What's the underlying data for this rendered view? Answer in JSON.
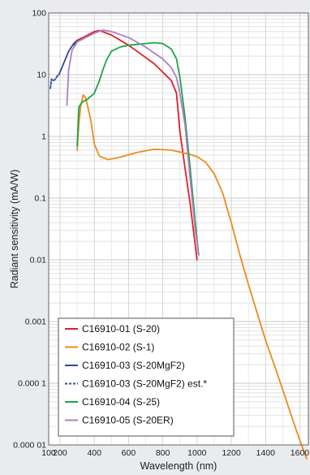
{
  "chart_data": {
    "type": "line",
    "title": "",
    "xlabel": "Wavelength (nm)",
    "ylabel": "Radiant sensitivity (mA/W)",
    "xlim": [
      100,
      1650
    ],
    "ylim": [
      1e-05,
      100
    ],
    "yscale": "log",
    "grid": true,
    "legend_position": "bottom-left",
    "x_ticks": [
      100,
      200,
      400,
      600,
      800,
      1000,
      1200,
      1400,
      1600
    ],
    "x_tick_labels": [
      "100",
      "200",
      "400",
      "600",
      "800",
      "1000",
      "1200",
      "1400",
      "1600"
    ],
    "y_ticks": [
      1e-05,
      0.0001,
      0.001,
      0.01,
      0.1,
      1,
      10,
      100
    ],
    "y_tick_labels": [
      "0.000 01",
      "0.000 1",
      "0.001",
      "0.01",
      "0.1",
      "1",
      "10",
      "100"
    ],
    "series": [
      {
        "name": "C16910-01 (S-20)",
        "color": "#e01f26",
        "dash": false,
        "points": [
          [
            280,
            30
          ],
          [
            300,
            36
          ],
          [
            350,
            42
          ],
          [
            400,
            50
          ],
          [
            430,
            52
          ],
          [
            500,
            44
          ],
          [
            600,
            30
          ],
          [
            700,
            19
          ],
          [
            750,
            15
          ],
          [
            800,
            11
          ],
          [
            850,
            8
          ],
          [
            880,
            5
          ],
          [
            900,
            1.2
          ],
          [
            930,
            0.3
          ],
          [
            960,
            0.08
          ],
          [
            1000,
            0.01
          ]
        ]
      },
      {
        "name": "C16910-02 (S-1)",
        "color": "#f08a1c",
        "dash": false,
        "points": [
          [
            300,
            0.6
          ],
          [
            310,
            1.6
          ],
          [
            320,
            3
          ],
          [
            335,
            4.7
          ],
          [
            350,
            4.2
          ],
          [
            380,
            1.8
          ],
          [
            400,
            0.75
          ],
          [
            430,
            0.48
          ],
          [
            480,
            0.42
          ],
          [
            550,
            0.46
          ],
          [
            650,
            0.55
          ],
          [
            750,
            0.62
          ],
          [
            850,
            0.6
          ],
          [
            950,
            0.52
          ],
          [
            1000,
            0.47
          ],
          [
            1050,
            0.38
          ],
          [
            1100,
            0.25
          ],
          [
            1150,
            0.12
          ],
          [
            1200,
            0.04
          ],
          [
            1250,
            0.012
          ],
          [
            1300,
            0.004
          ],
          [
            1350,
            0.0014
          ],
          [
            1400,
            0.0005
          ],
          [
            1450,
            0.0002
          ],
          [
            1500,
            8e-05
          ],
          [
            1550,
            3e-05
          ],
          [
            1600,
            1.2e-05
          ],
          [
            1640,
            6e-06
          ]
        ]
      },
      {
        "name": "C16910-03 (S-20MgF2)",
        "color": "#2b4a9c",
        "dash": false,
        "points": [
          [
            190,
            10
          ],
          [
            220,
            15
          ],
          [
            250,
            24
          ],
          [
            280,
            32
          ],
          [
            300,
            36
          ]
        ]
      },
      {
        "name": "C16910-03 (S-20MgF2) est.*",
        "color": "#2b4a9c",
        "dash": true,
        "points": [
          [
            115,
            6
          ],
          [
            125,
            8.5
          ],
          [
            140,
            8
          ],
          [
            160,
            8.5
          ],
          [
            175,
            9.5
          ],
          [
            190,
            10
          ]
        ]
      },
      {
        "name": "C16910-04 (S-25)",
        "color": "#1aa64a",
        "dash": false,
        "points": [
          [
            300,
            0.7
          ],
          [
            310,
            3
          ],
          [
            330,
            3.6
          ],
          [
            360,
            4
          ],
          [
            400,
            5
          ],
          [
            430,
            8
          ],
          [
            450,
            12
          ],
          [
            470,
            17
          ],
          [
            500,
            24
          ],
          [
            550,
            28
          ],
          [
            600,
            30
          ],
          [
            700,
            32
          ],
          [
            750,
            33
          ],
          [
            800,
            32
          ],
          [
            850,
            26
          ],
          [
            880,
            18
          ],
          [
            900,
            9
          ],
          [
            930,
            2
          ],
          [
            960,
            0.3
          ],
          [
            990,
            0.04
          ],
          [
            1010,
            0.012
          ]
        ]
      },
      {
        "name": "C16910-05 (S-20ER)",
        "color": "#b07cc6",
        "dash": false,
        "points": [
          [
            240,
            3.2
          ],
          [
            250,
            12
          ],
          [
            270,
            25
          ],
          [
            300,
            34
          ],
          [
            350,
            40
          ],
          [
            400,
            47
          ],
          [
            450,
            53
          ],
          [
            500,
            50
          ],
          [
            600,
            40
          ],
          [
            700,
            28
          ],
          [
            800,
            18
          ],
          [
            850,
            13
          ],
          [
            880,
            9
          ],
          [
            900,
            5
          ],
          [
            930,
            1.5
          ],
          [
            960,
            0.2
          ],
          [
            990,
            0.03
          ],
          [
            1010,
            0.012
          ]
        ]
      }
    ]
  }
}
